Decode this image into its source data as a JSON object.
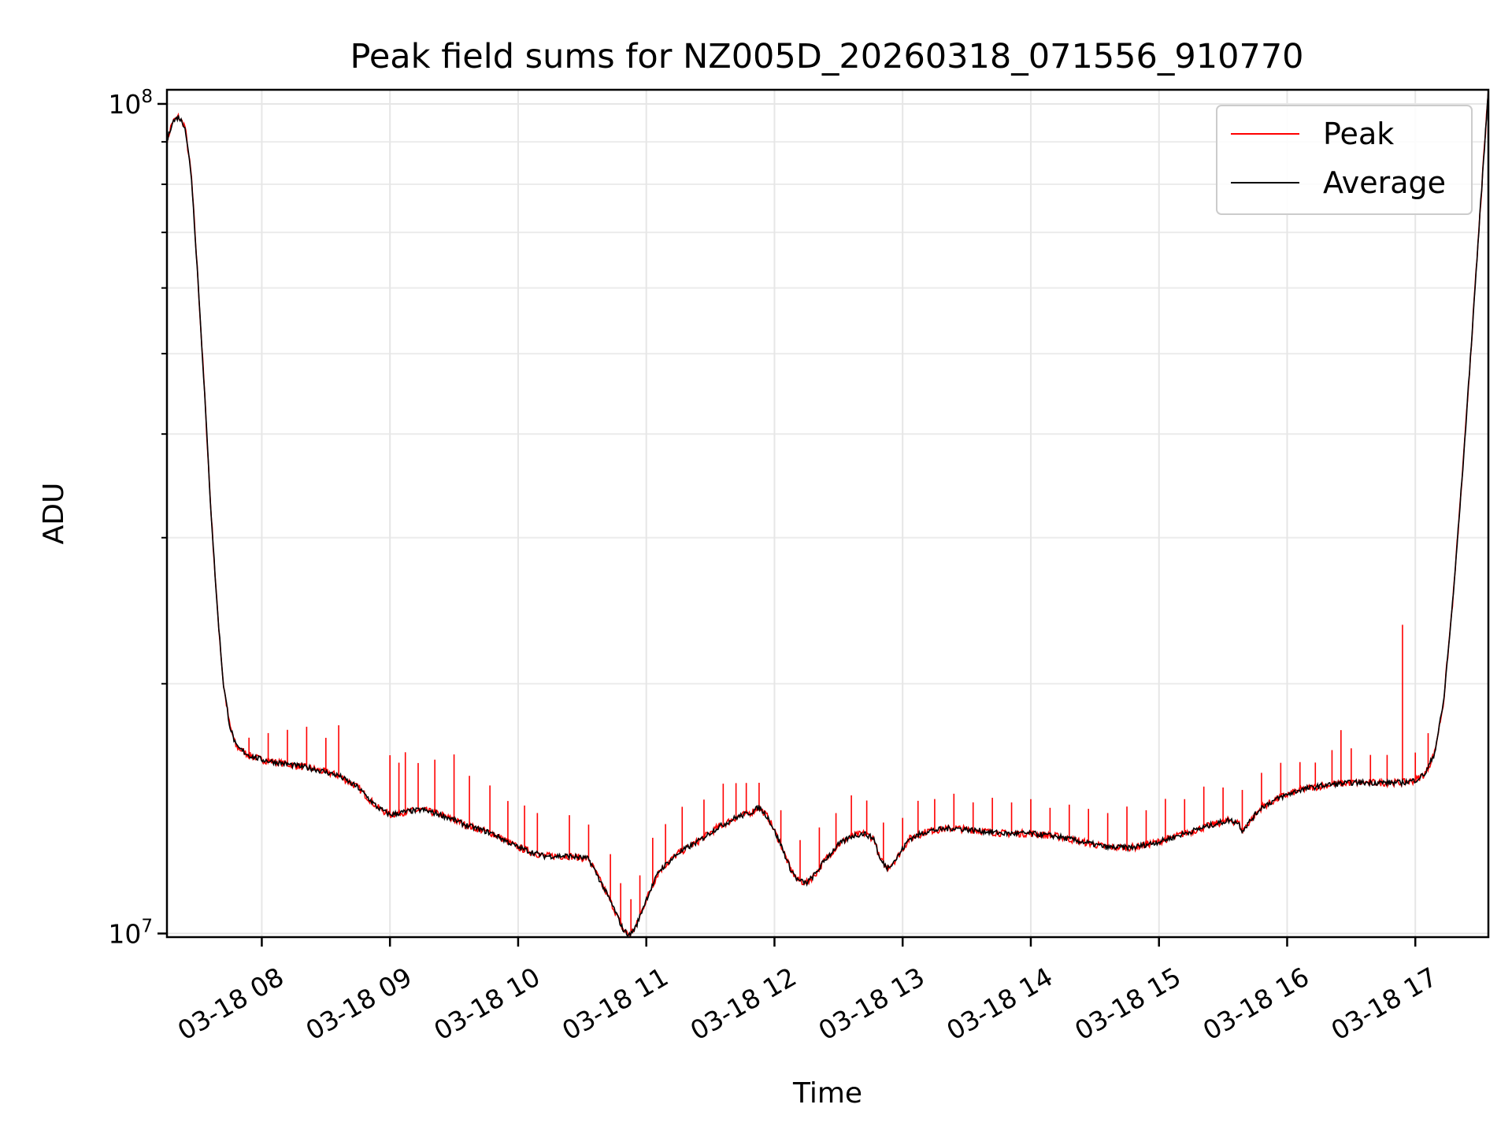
{
  "chart_data": {
    "type": "line",
    "title": "Peak field sums for NZ005D_20260318_071556_910770",
    "xlabel": "Time",
    "ylabel": "ADU",
    "yscale": "log",
    "ylim": [
      9900000,
      104000000
    ],
    "xlim_hours": [
      7.26,
      17.57
    ],
    "grid": true,
    "legend_position": "top-right",
    "x_ticks": [
      {
        "hour": 8,
        "label": "03-18 08"
      },
      {
        "hour": 9,
        "label": "03-18 09"
      },
      {
        "hour": 10,
        "label": "03-18 10"
      },
      {
        "hour": 11,
        "label": "03-18 11"
      },
      {
        "hour": 12,
        "label": "03-18 12"
      },
      {
        "hour": 13,
        "label": "03-18 13"
      },
      {
        "hour": 14,
        "label": "03-18 14"
      },
      {
        "hour": 15,
        "label": "03-18 15"
      },
      {
        "hour": 16,
        "label": "03-18 16"
      },
      {
        "hour": 17,
        "label": "03-18 17"
      }
    ],
    "y_ticks": [
      {
        "value": 10000000,
        "base": "10",
        "exp": "7"
      },
      {
        "value": 100000000,
        "base": "10",
        "exp": "8"
      }
    ],
    "y_minor_ticks": [
      20000000,
      30000000,
      40000000,
      50000000,
      60000000,
      70000000,
      80000000,
      90000000
    ],
    "series": [
      {
        "name": "Peak",
        "color": "#ff0000",
        "spikes": [
          [
            7.5,
            1.0
          ],
          [
            7.72,
            1.0
          ],
          [
            7.9,
            1.05
          ],
          [
            8.05,
            1.08
          ],
          [
            8.2,
            1.1
          ],
          [
            8.35,
            1.12
          ],
          [
            8.5,
            1.1
          ],
          [
            8.6,
            1.15
          ],
          [
            9.0,
            1.18
          ],
          [
            9.07,
            1.15
          ],
          [
            9.12,
            1.18
          ],
          [
            9.22,
            1.14
          ],
          [
            9.35,
            1.16
          ],
          [
            9.5,
            1.2
          ],
          [
            9.62,
            1.15
          ],
          [
            9.78,
            1.14
          ],
          [
            9.92,
            1.12
          ],
          [
            10.05,
            1.13
          ],
          [
            10.15,
            1.12
          ],
          [
            10.4,
            1.12
          ],
          [
            10.55,
            1.1
          ],
          [
            10.72,
            1.14
          ],
          [
            10.8,
            1.12
          ],
          [
            10.88,
            1.1
          ],
          [
            10.95,
            1.12
          ],
          [
            11.05,
            1.14
          ],
          [
            11.15,
            1.12
          ],
          [
            11.28,
            1.13
          ],
          [
            11.45,
            1.11
          ],
          [
            11.6,
            1.12
          ],
          [
            11.7,
            1.1
          ],
          [
            11.78,
            1.09
          ],
          [
            11.88,
            1.07
          ],
          [
            12.05,
            1.1
          ],
          [
            12.2,
            1.12
          ],
          [
            12.35,
            1.12
          ],
          [
            12.48,
            1.1
          ],
          [
            12.6,
            1.12
          ],
          [
            12.72,
            1.1
          ],
          [
            12.85,
            1.12
          ],
          [
            13.0,
            1.09
          ],
          [
            13.12,
            1.1
          ],
          [
            13.25,
            1.09
          ],
          [
            13.4,
            1.1
          ],
          [
            13.55,
            1.08
          ],
          [
            13.7,
            1.1
          ],
          [
            13.85,
            1.09
          ],
          [
            14.0,
            1.1
          ],
          [
            14.15,
            1.08
          ],
          [
            14.3,
            1.1
          ],
          [
            14.45,
            1.1
          ],
          [
            14.6,
            1.1
          ],
          [
            14.75,
            1.12
          ],
          [
            14.9,
            1.1
          ],
          [
            15.05,
            1.12
          ],
          [
            15.2,
            1.1
          ],
          [
            15.35,
            1.12
          ],
          [
            15.5,
            1.1
          ],
          [
            15.65,
            1.12
          ],
          [
            15.8,
            1.1
          ],
          [
            15.95,
            1.1
          ],
          [
            16.1,
            1.08
          ],
          [
            16.22,
            1.07
          ],
          [
            16.35,
            1.1
          ],
          [
            16.42,
            1.16
          ],
          [
            16.5,
            1.1
          ],
          [
            16.65,
            1.08
          ],
          [
            16.78,
            1.08
          ],
          [
            16.9,
            1.55
          ],
          [
            17.0,
            1.08
          ],
          [
            17.1,
            1.1
          ]
        ]
      },
      {
        "name": "Average",
        "color": "#000000",
        "baseline": [
          [
            7.26,
            90000000
          ],
          [
            7.3,
            95000000
          ],
          [
            7.35,
            96500000
          ],
          [
            7.4,
            94000000
          ],
          [
            7.45,
            82000000
          ],
          [
            7.5,
            62000000
          ],
          [
            7.55,
            46000000
          ],
          [
            7.6,
            33000000
          ],
          [
            7.65,
            25000000
          ],
          [
            7.7,
            20000000
          ],
          [
            7.75,
            17800000
          ],
          [
            7.8,
            16800000
          ],
          [
            7.9,
            16400000
          ],
          [
            8.0,
            16200000
          ],
          [
            8.2,
            16000000
          ],
          [
            8.4,
            15800000
          ],
          [
            8.6,
            15500000
          ],
          [
            8.75,
            15000000
          ],
          [
            8.9,
            14200000
          ],
          [
            9.0,
            13900000
          ],
          [
            9.1,
            14000000
          ],
          [
            9.25,
            14100000
          ],
          [
            9.4,
            13900000
          ],
          [
            9.6,
            13500000
          ],
          [
            9.8,
            13200000
          ],
          [
            10.0,
            12700000
          ],
          [
            10.2,
            12400000
          ],
          [
            10.4,
            12400000
          ],
          [
            10.55,
            12300000
          ],
          [
            10.65,
            11500000
          ],
          [
            10.75,
            10700000
          ],
          [
            10.82,
            10100000
          ],
          [
            10.87,
            9950000
          ],
          [
            10.92,
            10200000
          ],
          [
            11.0,
            11000000
          ],
          [
            11.1,
            11900000
          ],
          [
            11.25,
            12500000
          ],
          [
            11.4,
            12900000
          ],
          [
            11.55,
            13400000
          ],
          [
            11.7,
            13800000
          ],
          [
            11.82,
            14000000
          ],
          [
            11.88,
            14200000
          ],
          [
            11.95,
            13800000
          ],
          [
            12.05,
            12800000
          ],
          [
            12.12,
            12000000
          ],
          [
            12.18,
            11600000
          ],
          [
            12.25,
            11500000
          ],
          [
            12.32,
            11800000
          ],
          [
            12.4,
            12300000
          ],
          [
            12.5,
            12800000
          ],
          [
            12.6,
            13100000
          ],
          [
            12.7,
            13200000
          ],
          [
            12.78,
            13000000
          ],
          [
            12.82,
            12300000
          ],
          [
            12.88,
            12000000
          ],
          [
            12.95,
            12300000
          ],
          [
            13.05,
            13000000
          ],
          [
            13.2,
            13300000
          ],
          [
            13.4,
            13400000
          ],
          [
            13.6,
            13300000
          ],
          [
            13.8,
            13200000
          ],
          [
            14.0,
            13200000
          ],
          [
            14.2,
            13100000
          ],
          [
            14.4,
            12900000
          ],
          [
            14.6,
            12700000
          ],
          [
            14.8,
            12700000
          ],
          [
            15.0,
            12900000
          ],
          [
            15.2,
            13200000
          ],
          [
            15.4,
            13500000
          ],
          [
            15.55,
            13700000
          ],
          [
            15.62,
            13600000
          ],
          [
            15.65,
            13300000
          ],
          [
            15.7,
            13600000
          ],
          [
            15.8,
            14200000
          ],
          [
            15.95,
            14600000
          ],
          [
            16.1,
            14900000
          ],
          [
            16.3,
            15100000
          ],
          [
            16.5,
            15200000
          ],
          [
            16.7,
            15200000
          ],
          [
            16.9,
            15200000
          ],
          [
            17.0,
            15300000
          ],
          [
            17.08,
            15600000
          ],
          [
            17.15,
            16500000
          ],
          [
            17.22,
            19000000
          ],
          [
            17.3,
            26000000
          ],
          [
            17.38,
            38000000
          ],
          [
            17.45,
            55000000
          ],
          [
            17.52,
            80000000
          ],
          [
            17.57,
            104000000
          ]
        ]
      }
    ]
  }
}
